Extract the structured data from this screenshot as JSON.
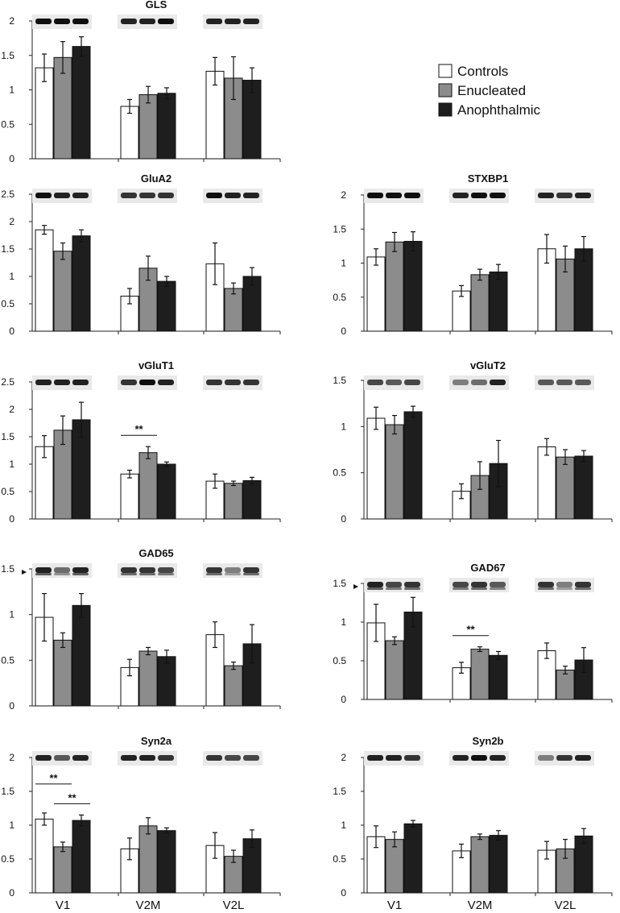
{
  "colors": {
    "Controls": "#ffffff",
    "Enucleated": "#8c8c8c",
    "Anophthalmic": "#1e1e1e"
  },
  "legend": [
    "Controls",
    "Enucleated",
    "Anophthalmic"
  ],
  "x_groups": [
    "V1",
    "V2M",
    "V2L"
  ],
  "chart_data": [
    {
      "type": "bar",
      "title": "GLS",
      "categories": [
        "V1",
        "V2M",
        "V2L"
      ],
      "yticks": [
        "0",
        "0.5",
        "1",
        "1.5",
        "2"
      ],
      "ylim": [
        0,
        2
      ],
      "series": [
        {
          "name": "Controls",
          "values": [
            1.32,
            0.76,
            1.27
          ],
          "errors": [
            0.2,
            0.1,
            0.2
          ]
        },
        {
          "name": "Enucleated",
          "values": [
            1.47,
            0.93,
            1.17
          ],
          "errors": [
            0.23,
            0.12,
            0.31
          ]
        },
        {
          "name": "Anophthalmic",
          "values": [
            1.63,
            0.95,
            1.14
          ],
          "errors": [
            0.14,
            0.08,
            0.18
          ]
        }
      ],
      "blot_intensity": [
        [
          1,
          1,
          1
        ],
        [
          0.9,
          0.9,
          1
        ],
        [
          0.9,
          0.9,
          0.9
        ]
      ],
      "significance": []
    },
    {
      "type": "bar",
      "title": "STXBP1",
      "categories": [
        "V1",
        "V2M",
        "V2L"
      ],
      "yticks": [
        "0",
        "0.5",
        "1",
        "1.5",
        "2"
      ],
      "ylim": [
        0,
        2
      ],
      "series": [
        {
          "name": "Controls",
          "values": [
            1.09,
            0.59,
            1.21
          ],
          "errors": [
            0.12,
            0.08,
            0.21
          ]
        },
        {
          "name": "Enucleated",
          "values": [
            1.31,
            0.83,
            1.06
          ],
          "errors": [
            0.14,
            0.08,
            0.19
          ]
        },
        {
          "name": "Anophthalmic",
          "values": [
            1.32,
            0.87,
            1.21
          ],
          "errors": [
            0.14,
            0.11,
            0.18
          ]
        }
      ],
      "blot_intensity": [
        [
          1,
          1,
          1
        ],
        [
          0.9,
          1,
          1
        ],
        [
          0.9,
          0.8,
          0.9
        ]
      ],
      "significance": []
    },
    {
      "type": "bar",
      "title": "GluA2",
      "categories": [
        "V1",
        "V2M",
        "V2L"
      ],
      "yticks": [
        "0",
        "0.5",
        "1",
        "1.5",
        "2",
        "2.5"
      ],
      "ylim": [
        0,
        2.5
      ],
      "series": [
        {
          "name": "Controls",
          "values": [
            1.85,
            0.64,
            1.23
          ],
          "errors": [
            0.08,
            0.14,
            0.38
          ]
        },
        {
          "name": "Enucleated",
          "values": [
            1.46,
            1.15,
            0.78
          ],
          "errors": [
            0.15,
            0.22,
            0.1
          ]
        },
        {
          "name": "Anophthalmic",
          "values": [
            1.74,
            0.91,
            1.0
          ],
          "errors": [
            0.11,
            0.09,
            0.16
          ]
        }
      ],
      "blot_intensity": [
        [
          1,
          0.9,
          0.9
        ],
        [
          0.8,
          0.8,
          0.8
        ],
        [
          1,
          0.9,
          0.9
        ]
      ],
      "significance": []
    },
    {
      "type": "bar",
      "title": "vGluT1",
      "categories": [
        "V1",
        "V2M",
        "V2L"
      ],
      "yticks": [
        "0",
        "0.5",
        "1",
        "1.5",
        "2",
        "2.5"
      ],
      "ylim": [
        0,
        2.5
      ],
      "series": [
        {
          "name": "Controls",
          "values": [
            1.32,
            0.82,
            0.69
          ],
          "errors": [
            0.2,
            0.07,
            0.13
          ]
        },
        {
          "name": "Enucleated",
          "values": [
            1.62,
            1.21,
            0.65
          ],
          "errors": [
            0.26,
            0.11,
            0.04
          ]
        },
        {
          "name": "Anophthalmic",
          "values": [
            1.81,
            1.0,
            0.7
          ],
          "errors": [
            0.32,
            0.04,
            0.06
          ]
        }
      ],
      "blot_intensity": [
        [
          0.9,
          0.9,
          0.9
        ],
        [
          0.8,
          1,
          0.9
        ],
        [
          0.8,
          0.8,
          0.8
        ]
      ],
      "significance": [
        {
          "group": "V2M",
          "from": 0,
          "to": 1,
          "label": "**"
        }
      ]
    },
    {
      "type": "bar",
      "title": "vGluT2",
      "categories": [
        "V1",
        "V2M",
        "V2L"
      ],
      "yticks": [
        "0",
        "0.5",
        "1",
        "1.5"
      ],
      "ylim": [
        0,
        1.5
      ],
      "series": [
        {
          "name": "Controls",
          "values": [
            1.09,
            0.3,
            0.78
          ],
          "errors": [
            0.12,
            0.08,
            0.09
          ]
        },
        {
          "name": "Enucleated",
          "values": [
            1.02,
            0.47,
            0.67
          ],
          "errors": [
            0.1,
            0.15,
            0.08
          ]
        },
        {
          "name": "Anophthalmic",
          "values": [
            1.16,
            0.6,
            0.68
          ],
          "errors": [
            0.06,
            0.25,
            0.06
          ]
        }
      ],
      "blot_intensity": [
        [
          0.7,
          0.6,
          0.7
        ],
        [
          0.4,
          0.5,
          0.9
        ],
        [
          0.6,
          0.6,
          0.6
        ]
      ],
      "significance": []
    },
    {
      "type": "bar",
      "title": "GAD65",
      "categories": [
        "V1",
        "V2M",
        "V2L"
      ],
      "yticks": [
        "0",
        "0.5",
        "1",
        "1.5"
      ],
      "ylim": [
        0,
        1.5
      ],
      "series": [
        {
          "name": "Controls",
          "values": [
            0.97,
            0.42,
            0.78
          ],
          "errors": [
            0.26,
            0.09,
            0.14
          ]
        },
        {
          "name": "Enucleated",
          "values": [
            0.72,
            0.6,
            0.44
          ],
          "errors": [
            0.08,
            0.04,
            0.04
          ]
        },
        {
          "name": "Anophthalmic",
          "values": [
            1.1,
            0.54,
            0.68
          ],
          "errors": [
            0.13,
            0.07,
            0.21
          ]
        }
      ],
      "blot_intensity": [
        [
          0.9,
          0.5,
          0.9
        ],
        [
          0.8,
          0.8,
          0.7
        ],
        [
          0.8,
          0.4,
          0.8
        ]
      ],
      "significance": [],
      "arrowhead": true
    },
    {
      "type": "bar",
      "title": "GAD67",
      "categories": [
        "V1",
        "V2M",
        "V2L"
      ],
      "yticks": [
        "0",
        "0.5",
        "1",
        "1.5"
      ],
      "ylim": [
        0,
        1.5
      ],
      "series": [
        {
          "name": "Controls",
          "values": [
            0.99,
            0.41,
            0.63
          ],
          "errors": [
            0.24,
            0.07,
            0.1
          ]
        },
        {
          "name": "Enucleated",
          "values": [
            0.76,
            0.65,
            0.38
          ],
          "errors": [
            0.05,
            0.03,
            0.05
          ]
        },
        {
          "name": "Anophthalmic",
          "values": [
            1.13,
            0.57,
            0.51
          ],
          "errors": [
            0.19,
            0.05,
            0.16
          ]
        }
      ],
      "blot_intensity": [
        [
          0.9,
          0.7,
          0.8
        ],
        [
          0.7,
          0.8,
          0.6
        ],
        [
          0.8,
          0.4,
          0.8
        ]
      ],
      "significance": [
        {
          "group": "V2M",
          "from": 0,
          "to": 1,
          "label": "**"
        }
      ],
      "arrowhead": true
    },
    {
      "type": "bar",
      "title": "Syn2a",
      "categories": [
        "V1",
        "V2M",
        "V2L"
      ],
      "yticks": [
        "0",
        "0.5",
        "1",
        "1.5",
        "2"
      ],
      "ylim": [
        0,
        2
      ],
      "series": [
        {
          "name": "Controls",
          "values": [
            1.09,
            0.65,
            0.7
          ],
          "errors": [
            0.09,
            0.16,
            0.19
          ]
        },
        {
          "name": "Enucleated",
          "values": [
            0.68,
            0.99,
            0.54
          ],
          "errors": [
            0.07,
            0.12,
            0.09
          ]
        },
        {
          "name": "Anophthalmic",
          "values": [
            1.07,
            0.92,
            0.8
          ],
          "errors": [
            0.08,
            0.04,
            0.13
          ]
        }
      ],
      "blot_intensity": [
        [
          0.9,
          0.6,
          0.9
        ],
        [
          0.9,
          0.9,
          0.8
        ],
        [
          0.8,
          0.7,
          0.7
        ]
      ],
      "significance": [
        {
          "group": "V1",
          "from": 0,
          "to": 1,
          "label": "**",
          "level": 1
        },
        {
          "group": "V1",
          "from": 1,
          "to": 2,
          "label": "**",
          "level": 0
        }
      ]
    },
    {
      "type": "bar",
      "title": "Syn2b",
      "categories": [
        "V1",
        "V2M",
        "V2L"
      ],
      "yticks": [
        "0",
        "0.5",
        "1",
        "1.5",
        "2"
      ],
      "ylim": [
        0,
        2
      ],
      "series": [
        {
          "name": "Controls",
          "values": [
            0.83,
            0.62,
            0.63
          ],
          "errors": [
            0.16,
            0.1,
            0.13
          ]
        },
        {
          "name": "Enucleated",
          "values": [
            0.79,
            0.83,
            0.65
          ],
          "errors": [
            0.11,
            0.04,
            0.14
          ]
        },
        {
          "name": "Anophthalmic",
          "values": [
            1.02,
            0.85,
            0.84
          ],
          "errors": [
            0.05,
            0.07,
            0.11
          ]
        }
      ],
      "blot_intensity": [
        [
          0.9,
          0.9,
          0.8
        ],
        [
          0.9,
          1,
          0.9
        ],
        [
          0.4,
          0.8,
          0.9
        ]
      ],
      "significance": []
    }
  ]
}
